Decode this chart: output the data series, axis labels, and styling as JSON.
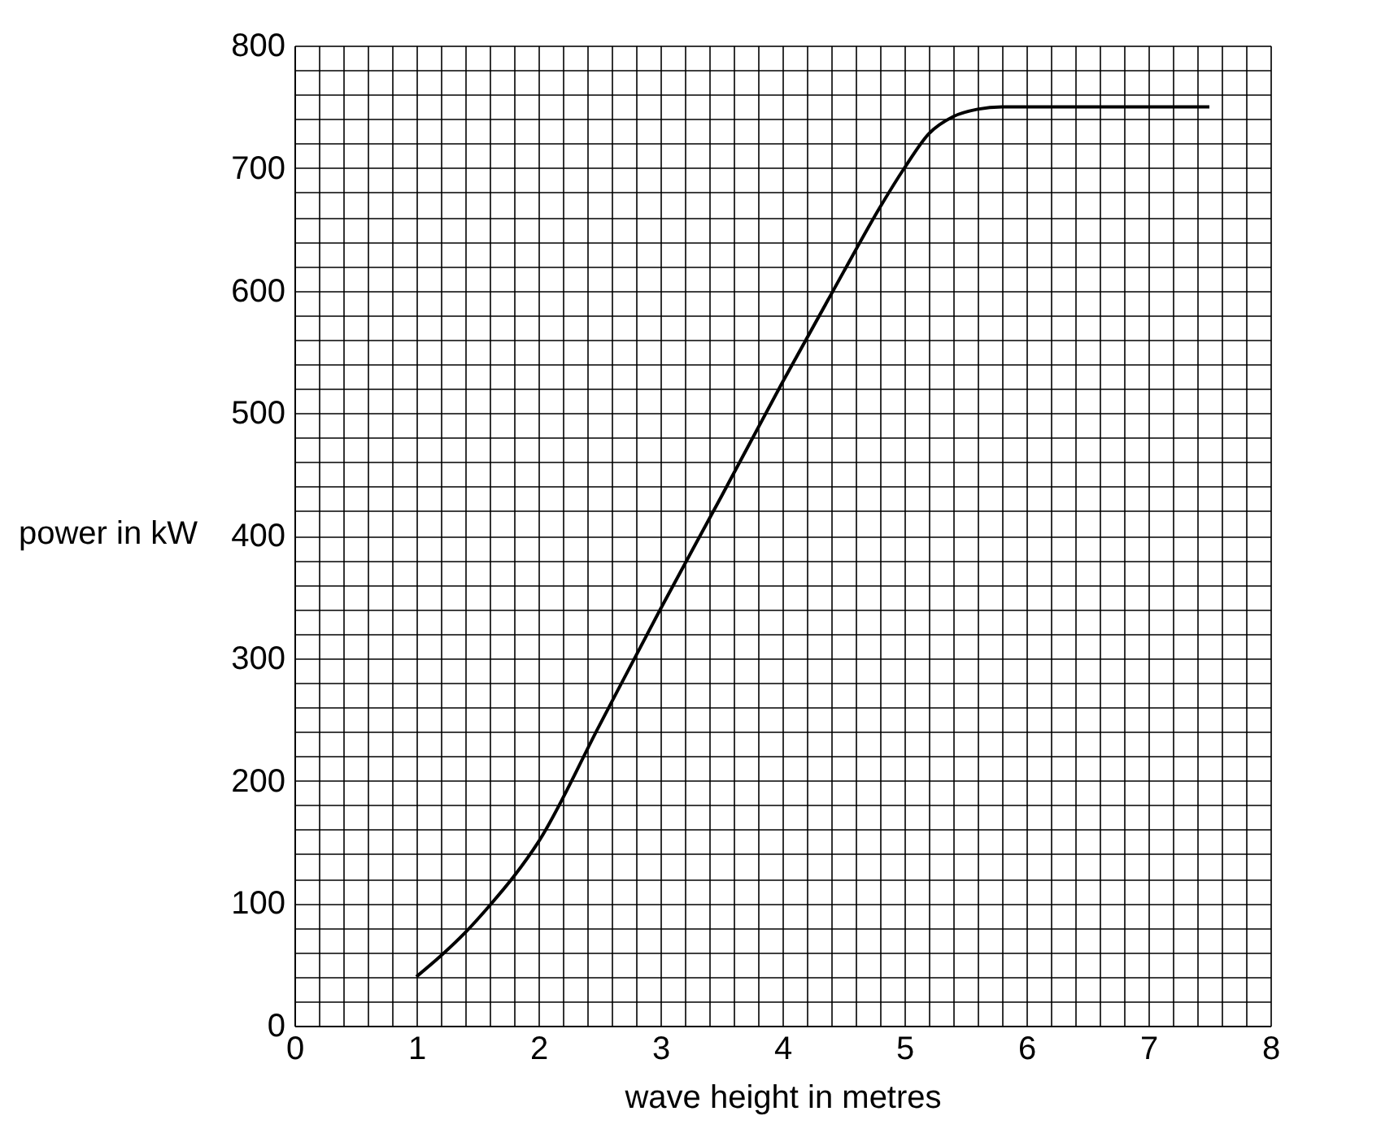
{
  "chart_data": {
    "type": "line",
    "xlabel": "wave height in metres",
    "ylabel": "power in kW",
    "x": [
      1,
      1.2,
      1.4,
      1.6,
      1.8,
      2,
      2.5,
      3,
      3.5,
      4,
      4.5,
      4.8,
      5,
      5.2,
      5.4,
      5.6,
      5.8,
      6,
      7.5
    ],
    "series": [
      {
        "color": "#000000",
        "values": [
          40,
          57,
          76,
          98,
          122,
          150,
          245,
          340,
          432,
          525,
          615,
          668,
          700,
          728,
          742,
          748,
          750,
          750,
          750
        ]
      }
    ],
    "xlim": [
      0,
      8
    ],
    "ylim": [
      0,
      800
    ],
    "xticks": [
      0,
      {
        "value": 0.2,
        "label": null
      },
      {
        "value": 0.4,
        "label": null
      },
      {
        "value": 0.6,
        "label": null
      },
      {
        "value": 0.8,
        "label": null
      },
      1,
      {
        "value": 1.2,
        "label": null
      },
      {
        "value": 1.4,
        "label": null
      },
      {
        "value": 1.6,
        "label": null
      },
      {
        "value": 1.8,
        "label": null
      },
      2,
      {
        "value": 2.2,
        "label": null
      },
      {
        "value": 2.4,
        "label": null
      },
      {
        "value": 2.6,
        "label": null
      },
      {
        "value": 2.8,
        "label": null
      },
      3,
      {
        "value": 3.2,
        "label": null
      },
      {
        "value": 3.4,
        "label": null
      },
      {
        "value": 3.6,
        "label": null
      },
      {
        "value": 3.8,
        "label": null
      },
      4,
      {
        "value": 4.2,
        "label": null
      },
      {
        "value": 4.4,
        "label": null
      },
      {
        "value": 4.6,
        "label": null
      },
      {
        "value": 4.8,
        "label": null
      },
      5,
      {
        "value": 5.2,
        "label": null
      },
      {
        "value": 5.4,
        "label": null
      },
      {
        "value": 5.6,
        "label": null
      },
      {
        "value": 5.8,
        "label": null
      },
      6,
      {
        "value": 6.2,
        "label": null
      },
      {
        "value": 6.4,
        "label": null
      },
      {
        "value": 6.6,
        "label": null
      },
      {
        "value": 6.8,
        "label": null
      },
      7,
      {
        "value": 7.2,
        "label": null
      },
      {
        "value": 7.4,
        "label": null
      },
      {
        "value": 7.6,
        "label": null
      },
      {
        "value": 7.8,
        "label": null
      },
      8
    ],
    "yticks": [
      0,
      {
        "value": 20,
        "label": null
      },
      {
        "value": 40,
        "label": null
      },
      {
        "value": 60,
        "label": null
      },
      {
        "value": 80,
        "label": null
      },
      100,
      {
        "value": 120,
        "label": null
      },
      {
        "value": 140,
        "label": null
      },
      {
        "value": 160,
        "label": null
      },
      {
        "value": 180,
        "label": null
      },
      200,
      {
        "value": 220,
        "label": null
      },
      {
        "value": 240,
        "label": null
      },
      {
        "value": 260,
        "label": null
      },
      {
        "value": 280,
        "label": null
      },
      300,
      {
        "value": 320,
        "label": null
      },
      {
        "value": 340,
        "label": null
      },
      {
        "value": 360,
        "label": null
      },
      {
        "value": 380,
        "label": null
      },
      400,
      {
        "value": 420,
        "label": null
      },
      {
        "value": 440,
        "label": null
      },
      {
        "value": 460,
        "label": null
      },
      {
        "value": 480,
        "label": null
      },
      500,
      {
        "value": 520,
        "label": null
      },
      {
        "value": 540,
        "label": null
      },
      {
        "value": 560,
        "label": null
      },
      {
        "value": 580,
        "label": null
      },
      600,
      {
        "value": 620,
        "label": null
      },
      {
        "value": 640,
        "label": null
      },
      {
        "value": 660,
        "label": null
      },
      {
        "value": 680,
        "label": null
      },
      700,
      {
        "value": 720,
        "label": null
      },
      {
        "value": 740,
        "label": null
      },
      {
        "value": 760,
        "label": null
      },
      {
        "value": 780,
        "label": null
      },
      800
    ],
    "grid": true,
    "marker": "none",
    "line_style": "solid"
  }
}
